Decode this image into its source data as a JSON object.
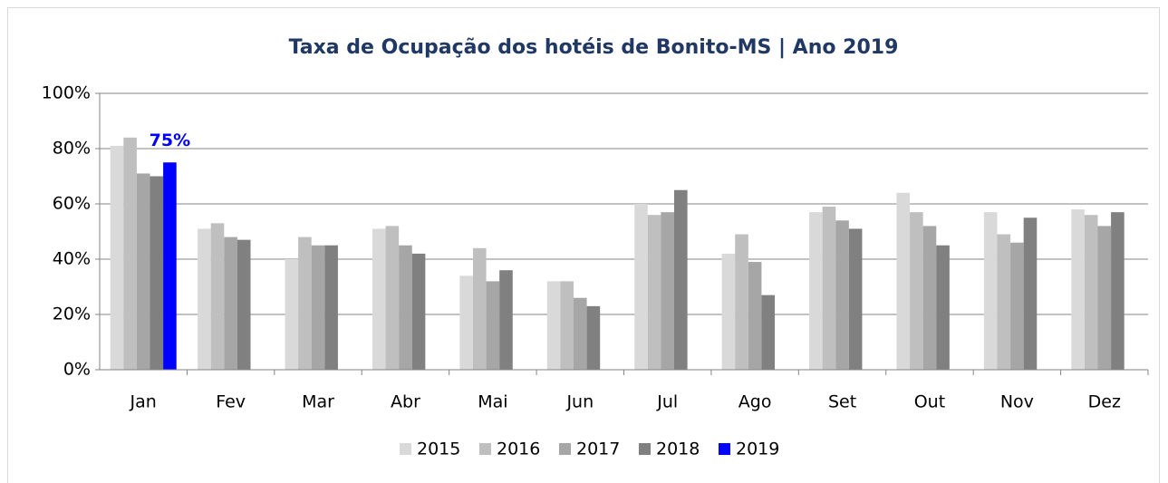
{
  "chart_data": {
    "type": "bar",
    "title": "Taxa de Ocupação dos hotéis de Bonito-MS | Ano 2019",
    "categories": [
      "Jan",
      "Fev",
      "Mar",
      "Abr",
      "Mai",
      "Jun",
      "Jul",
      "Ago",
      "Set",
      "Out",
      "Nov",
      "Dez"
    ],
    "series": [
      {
        "name": "2015",
        "color": "#d9d9d9",
        "values": [
          81,
          51,
          40,
          51,
          34,
          32,
          60,
          42,
          57,
          64,
          57,
          58
        ]
      },
      {
        "name": "2016",
        "color": "#bfbfbf",
        "values": [
          84,
          53,
          48,
          52,
          44,
          32,
          56,
          49,
          59,
          57,
          49,
          56
        ]
      },
      {
        "name": "2017",
        "color": "#a6a6a6",
        "values": [
          71,
          48,
          45,
          45,
          32,
          26,
          57,
          39,
          54,
          52,
          46,
          52
        ]
      },
      {
        "name": "2018",
        "color": "#808080",
        "values": [
          70,
          47,
          45,
          42,
          36,
          23,
          65,
          27,
          51,
          45,
          55,
          57
        ]
      },
      {
        "name": "2019",
        "color": "#0000ff",
        "values": [
          75,
          null,
          null,
          null,
          null,
          null,
          null,
          null,
          null,
          null,
          null,
          null
        ],
        "value_labels": [
          "75%",
          null,
          null,
          null,
          null,
          null,
          null,
          null,
          null,
          null,
          null,
          null
        ]
      }
    ],
    "ylim": [
      0,
      100
    ],
    "yticks": [
      {
        "value": 0,
        "label": "0%"
      },
      {
        "value": 20,
        "label": "20%"
      },
      {
        "value": 40,
        "label": "40%"
      },
      {
        "value": 60,
        "label": "60%"
      },
      {
        "value": 80,
        "label": "80%"
      },
      {
        "value": 100,
        "label": "100%"
      }
    ],
    "grid": true,
    "legend": "bottom"
  }
}
